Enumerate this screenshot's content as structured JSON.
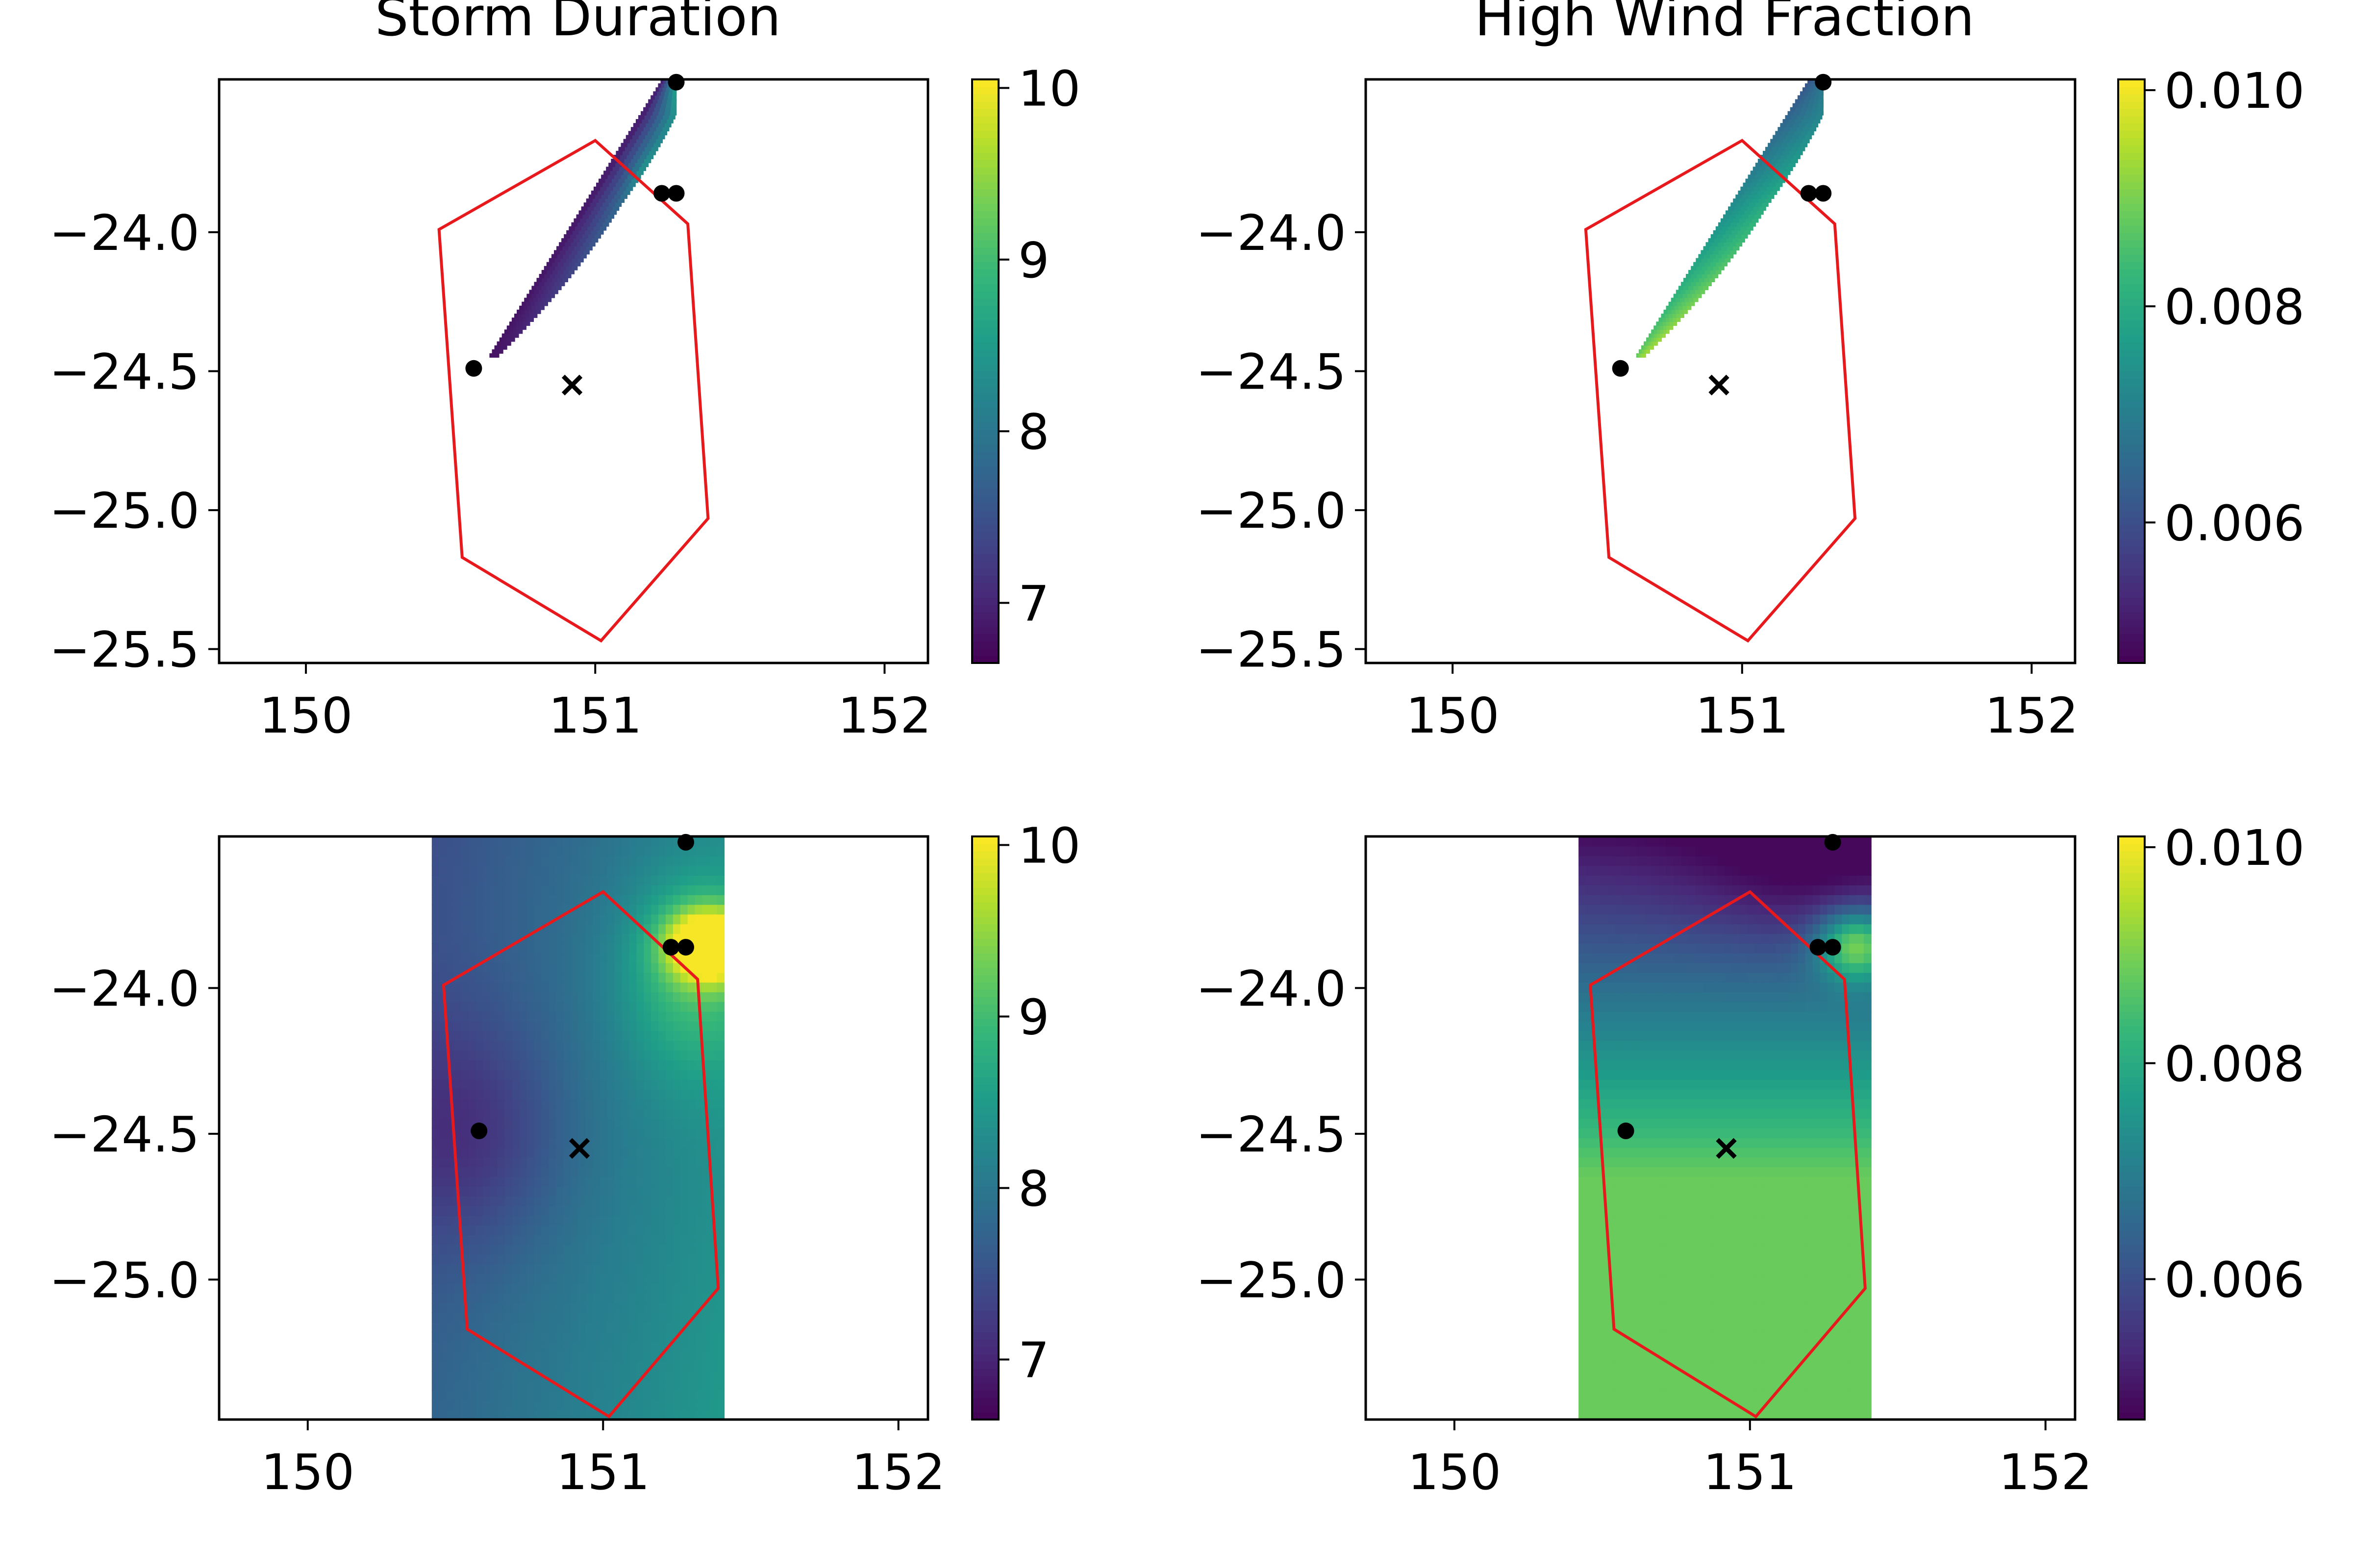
{
  "figure": {
    "titles": [
      "Storm Duration",
      "High Wind Fraction"
    ]
  },
  "colors": {
    "boundary": "#e8191c",
    "marker": "#000000",
    "axes": "#000000",
    "colormap": "viridis"
  },
  "chart_data": [
    {
      "type": "heatmap",
      "title": "Storm Duration",
      "xlim": [
        149.7,
        152.15
      ],
      "ylim": [
        -25.55,
        -23.45
      ],
      "x_ticks": [
        "150",
        "151",
        "152"
      ],
      "y_ticks": [
        "−24.0",
        "−24.5",
        "−25.0",
        "−25.5"
      ],
      "colorbar": {
        "range": [
          6.65,
          10.05
        ],
        "ticks": [
          "7",
          "8",
          "9",
          "10"
        ]
      },
      "field": {
        "extent": "wedge",
        "kind": "duration"
      },
      "boundary": [
        [
          151.0,
          -23.67
        ],
        [
          151.32,
          -23.97
        ],
        [
          151.39,
          -25.03
        ],
        [
          151.02,
          -25.47
        ],
        [
          150.54,
          -25.17
        ],
        [
          150.46,
          -23.99
        ]
      ],
      "stations": [
        [
          151.28,
          -23.46
        ],
        [
          151.23,
          -23.86
        ],
        [
          151.28,
          -23.86
        ],
        [
          150.58,
          -24.49
        ]
      ],
      "centroid": [
        150.92,
        -24.55
      ]
    },
    {
      "type": "heatmap",
      "title": "High Wind Fraction",
      "xlim": [
        149.7,
        152.15
      ],
      "ylim": [
        -25.55,
        -23.45
      ],
      "x_ticks": [
        "150",
        "151",
        "152"
      ],
      "y_ticks": [
        "−24.0",
        "−24.5",
        "−25.0",
        "−25.5"
      ],
      "colorbar": {
        "range": [
          0.0047,
          0.0101
        ],
        "ticks": [
          "0.006",
          "0.008",
          "0.010"
        ]
      },
      "field": {
        "extent": "wedge",
        "kind": "wind"
      },
      "boundary": [
        [
          151.0,
          -23.67
        ],
        [
          151.32,
          -23.97
        ],
        [
          151.39,
          -25.03
        ],
        [
          151.02,
          -25.47
        ],
        [
          150.54,
          -25.17
        ],
        [
          150.46,
          -23.99
        ]
      ],
      "stations": [
        [
          151.28,
          -23.46
        ],
        [
          151.23,
          -23.86
        ],
        [
          151.28,
          -23.86
        ],
        [
          150.58,
          -24.49
        ]
      ],
      "centroid": [
        150.92,
        -24.55
      ]
    },
    {
      "type": "heatmap",
      "title": "",
      "xlim": [
        149.7,
        152.1
      ],
      "ylim": [
        -25.48,
        -23.48
      ],
      "x_ticks": [
        "150",
        "151",
        "152"
      ],
      "y_ticks": [
        "−24.0",
        "−24.5",
        "−25.0"
      ],
      "colorbar": {
        "range": [
          6.65,
          10.05
        ],
        "ticks": [
          "7",
          "8",
          "9",
          "10"
        ]
      },
      "field": {
        "extent": "box",
        "x_range": [
          150.42,
          151.41
        ],
        "kind": "duration"
      },
      "boundary": [
        [
          151.0,
          -23.67
        ],
        [
          151.32,
          -23.97
        ],
        [
          151.39,
          -25.03
        ],
        [
          151.02,
          -25.47
        ],
        [
          150.54,
          -25.17
        ],
        [
          150.46,
          -23.99
        ]
      ],
      "stations": [
        [
          151.28,
          -23.5
        ],
        [
          151.23,
          -23.86
        ],
        [
          151.28,
          -23.86
        ],
        [
          150.58,
          -24.49
        ]
      ],
      "centroid": [
        150.92,
        -24.55
      ]
    },
    {
      "type": "heatmap",
      "title": "",
      "xlim": [
        149.7,
        152.1
      ],
      "ylim": [
        -25.48,
        -23.48
      ],
      "x_ticks": [
        "150",
        "151",
        "152"
      ],
      "y_ticks": [
        "−24.0",
        "−24.5",
        "−25.0"
      ],
      "colorbar": {
        "range": [
          0.0047,
          0.0101
        ],
        "ticks": [
          "0.006",
          "0.008",
          "0.010"
        ]
      },
      "field": {
        "extent": "box",
        "x_range": [
          150.42,
          151.41
        ],
        "kind": "wind"
      },
      "boundary": [
        [
          151.0,
          -23.67
        ],
        [
          151.32,
          -23.97
        ],
        [
          151.39,
          -25.03
        ],
        [
          151.02,
          -25.47
        ],
        [
          150.54,
          -25.17
        ],
        [
          150.46,
          -23.99
        ]
      ],
      "stations": [
        [
          151.28,
          -23.5
        ],
        [
          151.23,
          -23.86
        ],
        [
          151.28,
          -23.86
        ],
        [
          150.58,
          -24.49
        ]
      ],
      "centroid": [
        150.92,
        -24.55
      ]
    }
  ]
}
